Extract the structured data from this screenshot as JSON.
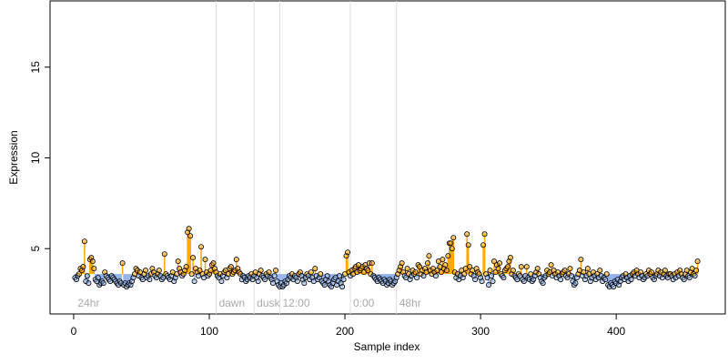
{
  "chart_data": {
    "type": "lollipop",
    "xlabel": "Sample index",
    "ylabel": "Expression",
    "xlim": [
      -17.4,
      480.4
    ],
    "ylim": [
      1.4,
      18.65
    ],
    "xticks": [
      0,
      100,
      200,
      300,
      400
    ],
    "yticks": [
      5,
      10,
      15
    ],
    "baseline": 3.6,
    "color_above": "#ffa500",
    "color_below": "#8fb0e8",
    "sections": [
      {
        "x": 1,
        "label": "24hr"
      },
      {
        "x": 105,
        "label": "dawn"
      },
      {
        "x": 133,
        "label": "dusk"
      },
      {
        "x": 152,
        "label": "12:00"
      },
      {
        "x": 204,
        "label": "0:00"
      },
      {
        "x": 238,
        "label": "48hr"
      }
    ],
    "values": [
      3.4,
      3.3,
      3.5,
      3.6,
      3.9,
      3.8,
      4.0,
      5.4,
      3.2,
      3.5,
      3.1,
      4.4,
      4.5,
      4.3,
      3.9,
      3.3,
      3.2,
      3.4,
      3.0,
      3.1,
      3.2,
      3.1,
      3.7,
      3.5,
      3.4,
      3.3,
      3.2,
      3.5,
      3.4,
      3.3,
      3.2,
      3.1,
      3.0,
      3.2,
      3.1,
      4.2,
      3.0,
      3.1,
      2.9,
      3.0,
      3.1,
      3.0,
      3.2,
      3.4,
      3.6,
      3.9,
      3.8,
      3.5,
      3.7,
      3.4,
      3.3,
      3.6,
      3.8,
      3.4,
      3.5,
      3.3,
      3.6,
      3.9,
      3.7,
      3.5,
      3.4,
      3.6,
      3.8,
      3.5,
      3.3,
      3.4,
      4.7,
      3.6,
      3.5,
      3.4,
      3.3,
      3.5,
      3.7,
      3.2,
      3.4,
      3.6,
      4.3,
      3.9,
      3.7,
      3.5,
      3.6,
      3.8,
      4.0,
      5.9,
      6.1,
      5.7,
      3.6,
      4.5,
      3.2,
      3.9,
      3.7,
      3.5,
      3.8,
      5.1,
      3.6,
      3.4,
      4.4,
      3.7,
      3.5,
      3.6,
      3.8,
      4.1,
      4.2,
      3.9,
      3.7,
      3.5,
      3.4,
      3.6,
      3.2,
      3.5,
      3.7,
      3.8,
      3.4,
      3.6,
      3.9,
      4.0,
      3.6,
      3.7,
      3.8,
      4.4,
      3.9,
      3.7,
      3.6,
      3.3,
      3.5,
      3.4,
      3.2,
      3.3,
      3.5,
      3.4,
      3.6,
      3.3,
      3.5,
      3.7,
      3.4,
      3.2,
      3.6,
      3.8,
      3.5,
      3.4,
      3.3,
      3.6,
      3.5,
      3.7,
      3.4,
      3.3,
      3.1,
      3.5,
      3.8,
      3.2,
      3.0,
      2.9,
      3.1,
      2.9,
      3.0,
      3.2,
      3.1,
      3.3,
      3.5,
      3.4,
      3.6,
      3.3,
      3.5,
      3.4,
      3.2,
      3.6,
      3.7,
      3.5,
      3.3,
      3.1,
      3.4,
      3.6,
      3.5,
      3.3,
      3.7,
      3.4,
      3.2,
      3.9,
      3.5,
      3.3,
      3.4,
      3.6,
      3.2,
      3.1,
      3.0,
      3.3,
      3.5,
      3.2,
      3.0,
      2.9,
      3.1,
      3.3,
      3.4,
      3.0,
      3.2,
      3.5,
      3.1,
      2.9,
      3.3,
      3.6,
      4.6,
      4.8,
      3.7,
      3.5,
      3.8,
      3.6,
      3.9,
      4.0,
      3.7,
      4.1,
      3.8,
      3.9,
      4.0,
      3.7,
      4.1,
      3.9,
      3.8,
      4.2,
      3.6,
      4.2,
      3.5,
      3.4,
      3.3,
      3.2,
      3.4,
      3.3,
      3.2,
      3.1,
      3.3,
      3.2,
      3.0,
      3.1,
      3.3,
      3.2,
      3.0,
      3.1,
      3.2,
      3.4,
      3.6,
      3.8,
      4.0,
      4.2,
      3.7,
      3.5,
      3.4,
      3.9,
      3.6,
      3.3,
      3.5,
      3.8,
      3.6,
      3.7,
      3.4,
      4.1,
      4.0,
      3.6,
      3.8,
      3.5,
      3.9,
      3.7,
      4.2,
      4.6,
      3.8,
      3.6,
      3.9,
      3.7,
      3.5,
      3.8,
      4.3,
      4.0,
      3.7,
      4.4,
      3.9,
      4.1,
      3.8,
      4.6,
      5.3,
      5.3,
      5.0,
      5.6,
      3.7,
      3.4,
      3.6,
      3.3,
      3.5,
      3.8,
      3.4,
      3.6,
      3.9,
      5.8,
      5.2,
      4.0,
      3.6,
      3.8,
      3.5,
      3.3,
      3.9,
      3.7,
      3.6,
      3.4,
      3.2,
      5.2,
      5.8,
      3.6,
      3.4,
      3.0,
      3.8,
      3.5,
      3.2,
      4.3,
      3.7,
      4.1,
      3.9,
      4.2,
      3.6,
      3.5,
      3.4,
      3.8,
      3.9,
      4.0,
      4.3,
      4.5,
      3.6,
      3.8,
      3.5,
      3.4,
      3.3,
      3.6,
      3.5,
      4.0,
      3.3,
      3.2,
      3.5,
      4.0,
      3.4,
      3.3,
      3.6,
      3.2,
      3.3,
      3.5,
      3.7,
      3.9,
      3.6,
      3.4,
      3.2,
      3.1,
      3.4,
      3.5,
      3.8,
      3.6,
      3.7,
      4.1,
      3.5,
      3.8,
      3.6,
      3.4,
      3.7,
      3.5,
      3.3,
      3.6,
      3.7,
      3.8,
      3.5,
      3.4,
      3.6,
      3.9,
      3.5,
      3.2,
      3.0,
      3.1,
      3.4,
      3.6,
      3.8,
      4.4,
      3.5,
      3.7,
      3.3,
      3.5,
      3.9,
      3.6,
      3.2,
      3.4,
      3.7,
      3.5,
      3.3,
      3.6,
      3.4,
      3.8,
      3.5,
      3.2,
      3.4,
      3.3,
      3.6,
      3.0,
      2.9,
      3.1,
      3.0,
      2.9,
      3.2,
      3.1,
      3.3,
      3.0,
      3.2,
      3.4,
      3.5,
      3.3,
      3.6,
      3.4,
      3.2,
      3.5,
      3.3,
      3.6,
      3.7,
      3.5,
      3.8,
      3.6,
      3.4,
      3.7,
      3.5,
      3.3,
      3.4,
      3.6,
      3.5,
      3.8,
      3.6,
      3.7,
      3.4,
      3.3,
      3.5,
      3.6,
      3.8,
      3.5,
      3.7,
      3.4,
      3.6,
      3.8,
      3.5,
      3.4,
      3.6,
      3.6,
      3.5,
      3.3,
      3.6,
      3.4,
      3.7,
      3.5,
      3.8,
      3.6,
      3.4,
      3.3,
      3.6,
      3.8,
      3.5,
      3.4,
      3.7,
      3.9,
      3.6,
      3.5,
      3.8,
      4.3
    ]
  }
}
